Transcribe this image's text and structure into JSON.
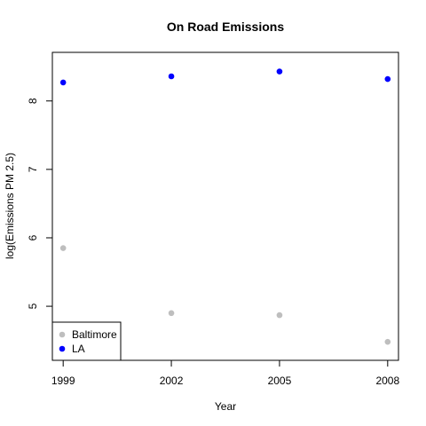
{
  "chart_data": {
    "type": "scatter",
    "title": "On Road Emissions",
    "xlabel": "Year",
    "ylabel": "log(Emissions PM 2.5)",
    "x": [
      1999,
      2002,
      2005,
      2008
    ],
    "x_ticks": [
      "1999",
      "2002",
      "2005",
      "2008"
    ],
    "y_ticks": [
      "5",
      "6",
      "7",
      "8"
    ],
    "xlim": [
      1998.7,
      2008.3
    ],
    "ylim": [
      4.21,
      8.71
    ],
    "grid": false,
    "legend_position": "bottom-left",
    "series": [
      {
        "name": "Baltimore",
        "color": "#bebebe",
        "values": [
          5.85,
          4.9,
          4.87,
          4.48
        ]
      },
      {
        "name": "LA",
        "color": "#0000ff",
        "values": [
          8.27,
          8.36,
          8.43,
          8.32
        ]
      }
    ]
  }
}
